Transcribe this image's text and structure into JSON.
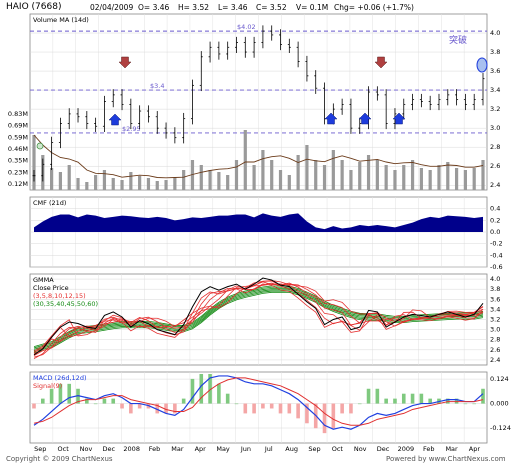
{
  "header": {
    "ticker": "HAIO (7668)",
    "date": "02/04/2009",
    "open": "O= 3.46",
    "high": "H= 3.52",
    "low": "L= 3.46",
    "close": "C= 3.52",
    "volume": "V= 0.1M",
    "change": "Chg= +0.06 (+1.7%)"
  },
  "footer": {
    "copyright": "Copyright © 2009 ChartNexus",
    "powered": "Powered by www.ChartNexus.com"
  },
  "colors": {
    "up": "#d62020",
    "down": "#000000",
    "guide": "#6a5acd",
    "cmf": "#00008b",
    "gmma_short": "#e53030",
    "gmma_long": "#138a13",
    "macd": "#2040e0",
    "signal": "#e03030",
    "arrow_up": "#1e3cdc",
    "arrow_down": "#b04040"
  },
  "chart_data": [
    {
      "type": "line",
      "title": "",
      "panel": "price",
      "x_labels": [
        "Sep",
        "Oct",
        "Nov",
        "Dec",
        "2008",
        "Feb",
        "Mar",
        "Apr",
        "May",
        "Jun",
        "Jul",
        "Aug",
        "Sep",
        "Oct",
        "Nov",
        "Dec",
        "2009",
        "Feb",
        "Mar",
        "Apr"
      ],
      "ylim": [
        2.35,
        4.2
      ],
      "y_ticks": [
        "2.4",
        "2.6",
        "2.8",
        "3.0",
        "3.2",
        "3.4",
        "3.6",
        "3.8",
        "4.0"
      ],
      "levels": [
        {
          "label": "$4.02",
          "value": 4.02
        },
        {
          "label": "$3.4",
          "value": 3.4
        },
        {
          "label": "$2.95",
          "value": 2.95
        }
      ],
      "annotation": "突破",
      "series": [
        {
          "name": "",
          "values": [
            2.5,
            2.62,
            2.85,
            3.05,
            3.15,
            3.12,
            3.05,
            3.02,
            3.28,
            3.35,
            3.25,
            3.05,
            3.18,
            3.12,
            3.0,
            2.95,
            2.9,
            3.1,
            3.45,
            3.75,
            3.85,
            3.78,
            3.85,
            3.9,
            3.8,
            3.9,
            4.02,
            3.98,
            3.88,
            3.85,
            3.7,
            3.55,
            3.42,
            3.1,
            3.2,
            3.25,
            3.0,
            3.05,
            3.38,
            3.35,
            3.05,
            3.15,
            3.25,
            3.3,
            3.28,
            3.25,
            3.3,
            3.35,
            3.3,
            3.25,
            3.3,
            3.52
          ]
        }
      ]
    },
    {
      "type": "bar",
      "title": "Volume MA (14d)",
      "panel": "volume",
      "y_ticks": [
        "0.12M",
        "0.23M",
        "0.35M",
        "0.46M",
        "0.59M",
        "0.69M",
        "0.83M"
      ],
      "values": [
        0.55,
        0.35,
        0.22,
        0.18,
        0.25,
        0.12,
        0.08,
        0.15,
        0.2,
        0.12,
        0.1,
        0.18,
        0.14,
        0.12,
        0.09,
        0.1,
        0.12,
        0.2,
        0.3,
        0.25,
        0.2,
        0.18,
        0.15,
        0.3,
        0.6,
        0.25,
        0.4,
        0.3,
        0.2,
        0.15,
        0.35,
        0.45,
        0.3,
        0.25,
        0.4,
        0.3,
        0.2,
        0.28,
        0.35,
        0.3,
        0.25,
        0.2,
        0.25,
        0.3,
        0.22,
        0.2,
        0.25,
        0.28,
        0.22,
        0.2,
        0.22,
        0.3
      ]
    },
    {
      "type": "area",
      "title": "CMF (21d)",
      "panel": "cmf",
      "ylim": [
        -0.6,
        0.6
      ],
      "y_ticks": [
        "-0.6",
        "-0.4",
        "-0.2",
        "0.0",
        "0.2",
        "0.4"
      ],
      "values": [
        0.08,
        0.18,
        0.26,
        0.3,
        0.3,
        0.25,
        0.3,
        0.28,
        0.24,
        0.26,
        0.28,
        0.27,
        0.25,
        0.24,
        0.26,
        0.24,
        0.2,
        0.22,
        0.25,
        0.24,
        0.26,
        0.28,
        0.28,
        0.3,
        0.3,
        0.25,
        0.32,
        0.28,
        0.26,
        0.3,
        0.32,
        0.18,
        0.08,
        0.05,
        0.1,
        0.06,
        0.08,
        0.12,
        0.1,
        0.12,
        0.1,
        0.08,
        0.12,
        0.16,
        0.22,
        0.26,
        0.24,
        0.28,
        0.27,
        0.26,
        0.24,
        0.26
      ]
    },
    {
      "type": "line",
      "title": "GMMA",
      "panel": "gmma",
      "legend": [
        "Close Price",
        "(3,5,8,10,12,15)",
        "(30,35,40,45,50,60)"
      ],
      "ylim": [
        2.3,
        4.1
      ],
      "y_ticks": [
        "2.4",
        "2.6",
        "2.8",
        "3.0",
        "3.2",
        "3.4",
        "3.6",
        "3.8",
        "4.0"
      ],
      "series": [
        {
          "name": "(3,5,8,10,12,15)",
          "values": [
            2.5,
            2.6,
            2.8,
            3.0,
            3.12,
            3.1,
            3.05,
            3.02,
            3.2,
            3.3,
            3.22,
            3.05,
            3.15,
            3.1,
            3.0,
            2.96,
            2.92,
            3.08,
            3.4,
            3.7,
            3.82,
            3.78,
            3.84,
            3.88,
            3.8,
            3.88,
            3.98,
            3.95,
            3.86,
            3.83,
            3.7,
            3.55,
            3.42,
            3.12,
            3.2,
            3.23,
            3.02,
            3.05,
            3.35,
            3.32,
            3.08,
            3.15,
            3.24,
            3.28,
            3.27,
            3.25,
            3.29,
            3.33,
            3.3,
            3.26,
            3.29,
            3.48
          ]
        },
        {
          "name": "(30,35,40,45,50,60)",
          "values": [
            2.6,
            2.65,
            2.7,
            2.8,
            2.9,
            2.98,
            3.0,
            3.02,
            3.05,
            3.08,
            3.1,
            3.1,
            3.1,
            3.1,
            3.08,
            3.05,
            3.02,
            3.02,
            3.08,
            3.2,
            3.35,
            3.48,
            3.58,
            3.65,
            3.7,
            3.74,
            3.78,
            3.8,
            3.8,
            3.8,
            3.75,
            3.68,
            3.6,
            3.5,
            3.42,
            3.36,
            3.3,
            3.26,
            3.25,
            3.25,
            3.22,
            3.2,
            3.2,
            3.22,
            3.23,
            3.24,
            3.25,
            3.26,
            3.27,
            3.27,
            3.27,
            3.3
          ]
        }
      ]
    },
    {
      "type": "line",
      "title": "MACD (26d,12d)",
      "panel": "macd",
      "legend": [
        "Signal(9)"
      ],
      "ylim": [
        -0.2,
        0.16
      ],
      "y_ticks": [
        "-0.124",
        "0.000",
        "0.124"
      ],
      "series": [
        {
          "name": "MACD (26d,12d)",
          "values": [
            -0.11,
            -0.08,
            -0.04,
            0.0,
            0.03,
            0.04,
            0.03,
            0.02,
            0.04,
            0.05,
            0.03,
            0.0,
            0.0,
            -0.01,
            -0.03,
            -0.05,
            -0.06,
            -0.03,
            0.03,
            0.09,
            0.13,
            0.14,
            0.14,
            0.13,
            0.11,
            0.1,
            0.1,
            0.09,
            0.07,
            0.05,
            0.02,
            -0.02,
            -0.06,
            -0.11,
            -0.13,
            -0.12,
            -0.13,
            -0.11,
            -0.07,
            -0.05,
            -0.06,
            -0.05,
            -0.03,
            -0.01,
            0.0,
            0.0,
            0.01,
            0.02,
            0.02,
            0.01,
            0.01,
            0.05
          ]
        },
        {
          "name": "Signal(9)",
          "values": [
            -0.1,
            -0.09,
            -0.07,
            -0.04,
            -0.01,
            0.01,
            0.02,
            0.02,
            0.03,
            0.04,
            0.04,
            0.02,
            0.01,
            0.0,
            -0.01,
            -0.03,
            -0.04,
            -0.04,
            -0.02,
            0.03,
            0.07,
            0.1,
            0.12,
            0.13,
            0.13,
            0.12,
            0.11,
            0.1,
            0.09,
            0.07,
            0.05,
            0.02,
            -0.01,
            -0.05,
            -0.08,
            -0.1,
            -0.11,
            -0.11,
            -0.1,
            -0.08,
            -0.07,
            -0.06,
            -0.05,
            -0.03,
            -0.02,
            -0.01,
            0.0,
            0.01,
            0.01,
            0.01,
            0.01,
            0.02
          ]
        }
      ]
    }
  ]
}
